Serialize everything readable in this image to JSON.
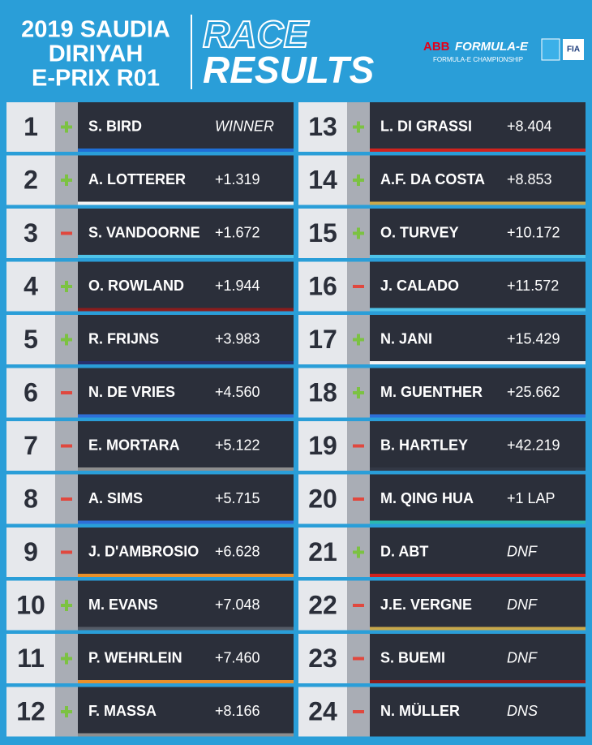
{
  "header": {
    "title_lines": [
      "2019 SAUDIA",
      "DIRIYAH",
      "E-PRIX R01"
    ],
    "race": "RACE",
    "results": "RESULTS",
    "logo": {
      "abb": "ABB",
      "brand": "FORMULA-E",
      "championship": "FORMULA-E CHAMPIONSHIP",
      "fia": "FIA"
    }
  },
  "results": [
    {
      "position": "1",
      "driver": "S. BIRD",
      "gap": "WINNER"
    },
    {
      "position": "2",
      "driver": "A. LOTTERER",
      "gap": "+1.319"
    },
    {
      "position": "3",
      "driver": "S. VANDOORNE",
      "gap": "+1.672"
    },
    {
      "position": "4",
      "driver": "O. ROWLAND",
      "gap": "+1.944"
    },
    {
      "position": "5",
      "driver": "R. FRIJNS",
      "gap": "+3.983"
    },
    {
      "position": "6",
      "driver": "N. DE VRIES",
      "gap": "+4.560"
    },
    {
      "position": "7",
      "driver": "E. MORTARA",
      "gap": "+5.122"
    },
    {
      "position": "8",
      "driver": "A. SIMS",
      "gap": "+5.715"
    },
    {
      "position": "9",
      "driver": "J. D'AMBROSIO",
      "gap": "+6.628"
    },
    {
      "position": "10",
      "driver": "M. EVANS",
      "gap": "+7.048"
    },
    {
      "position": "11",
      "driver": "P. WEHRLEIN",
      "gap": "+7.460"
    },
    {
      "position": "12",
      "driver": "F. MASSA",
      "gap": "+8.166"
    },
    {
      "position": "13",
      "driver": "L. DI GRASSI",
      "gap": "+8.404"
    },
    {
      "position": "14",
      "driver": "A.F. DA COSTA",
      "gap": "+8.853"
    },
    {
      "position": "15",
      "driver": "O. TURVEY",
      "gap": "+10.172"
    },
    {
      "position": "16",
      "driver": "J. CALADO",
      "gap": "+11.572"
    },
    {
      "position": "17",
      "driver": "N. JANI",
      "gap": "+15.429"
    },
    {
      "position": "18",
      "driver": "M. GUENTHER",
      "gap": "+25.662"
    },
    {
      "position": "19",
      "driver": "B. HARTLEY",
      "gap": "+42.219"
    },
    {
      "position": "20",
      "driver": "M. QING HUA",
      "gap": "+1 LAP"
    },
    {
      "position": "21",
      "driver": "D. ABT",
      "gap": "DNF"
    },
    {
      "position": "22",
      "driver": "J.E. VERGNE",
      "gap": "DNF"
    },
    {
      "position": "23",
      "driver": "S. BUEMI",
      "gap": "DNF"
    },
    {
      "position": "24",
      "driver": "N. MÜLLER",
      "gap": "DNS"
    }
  ]
}
